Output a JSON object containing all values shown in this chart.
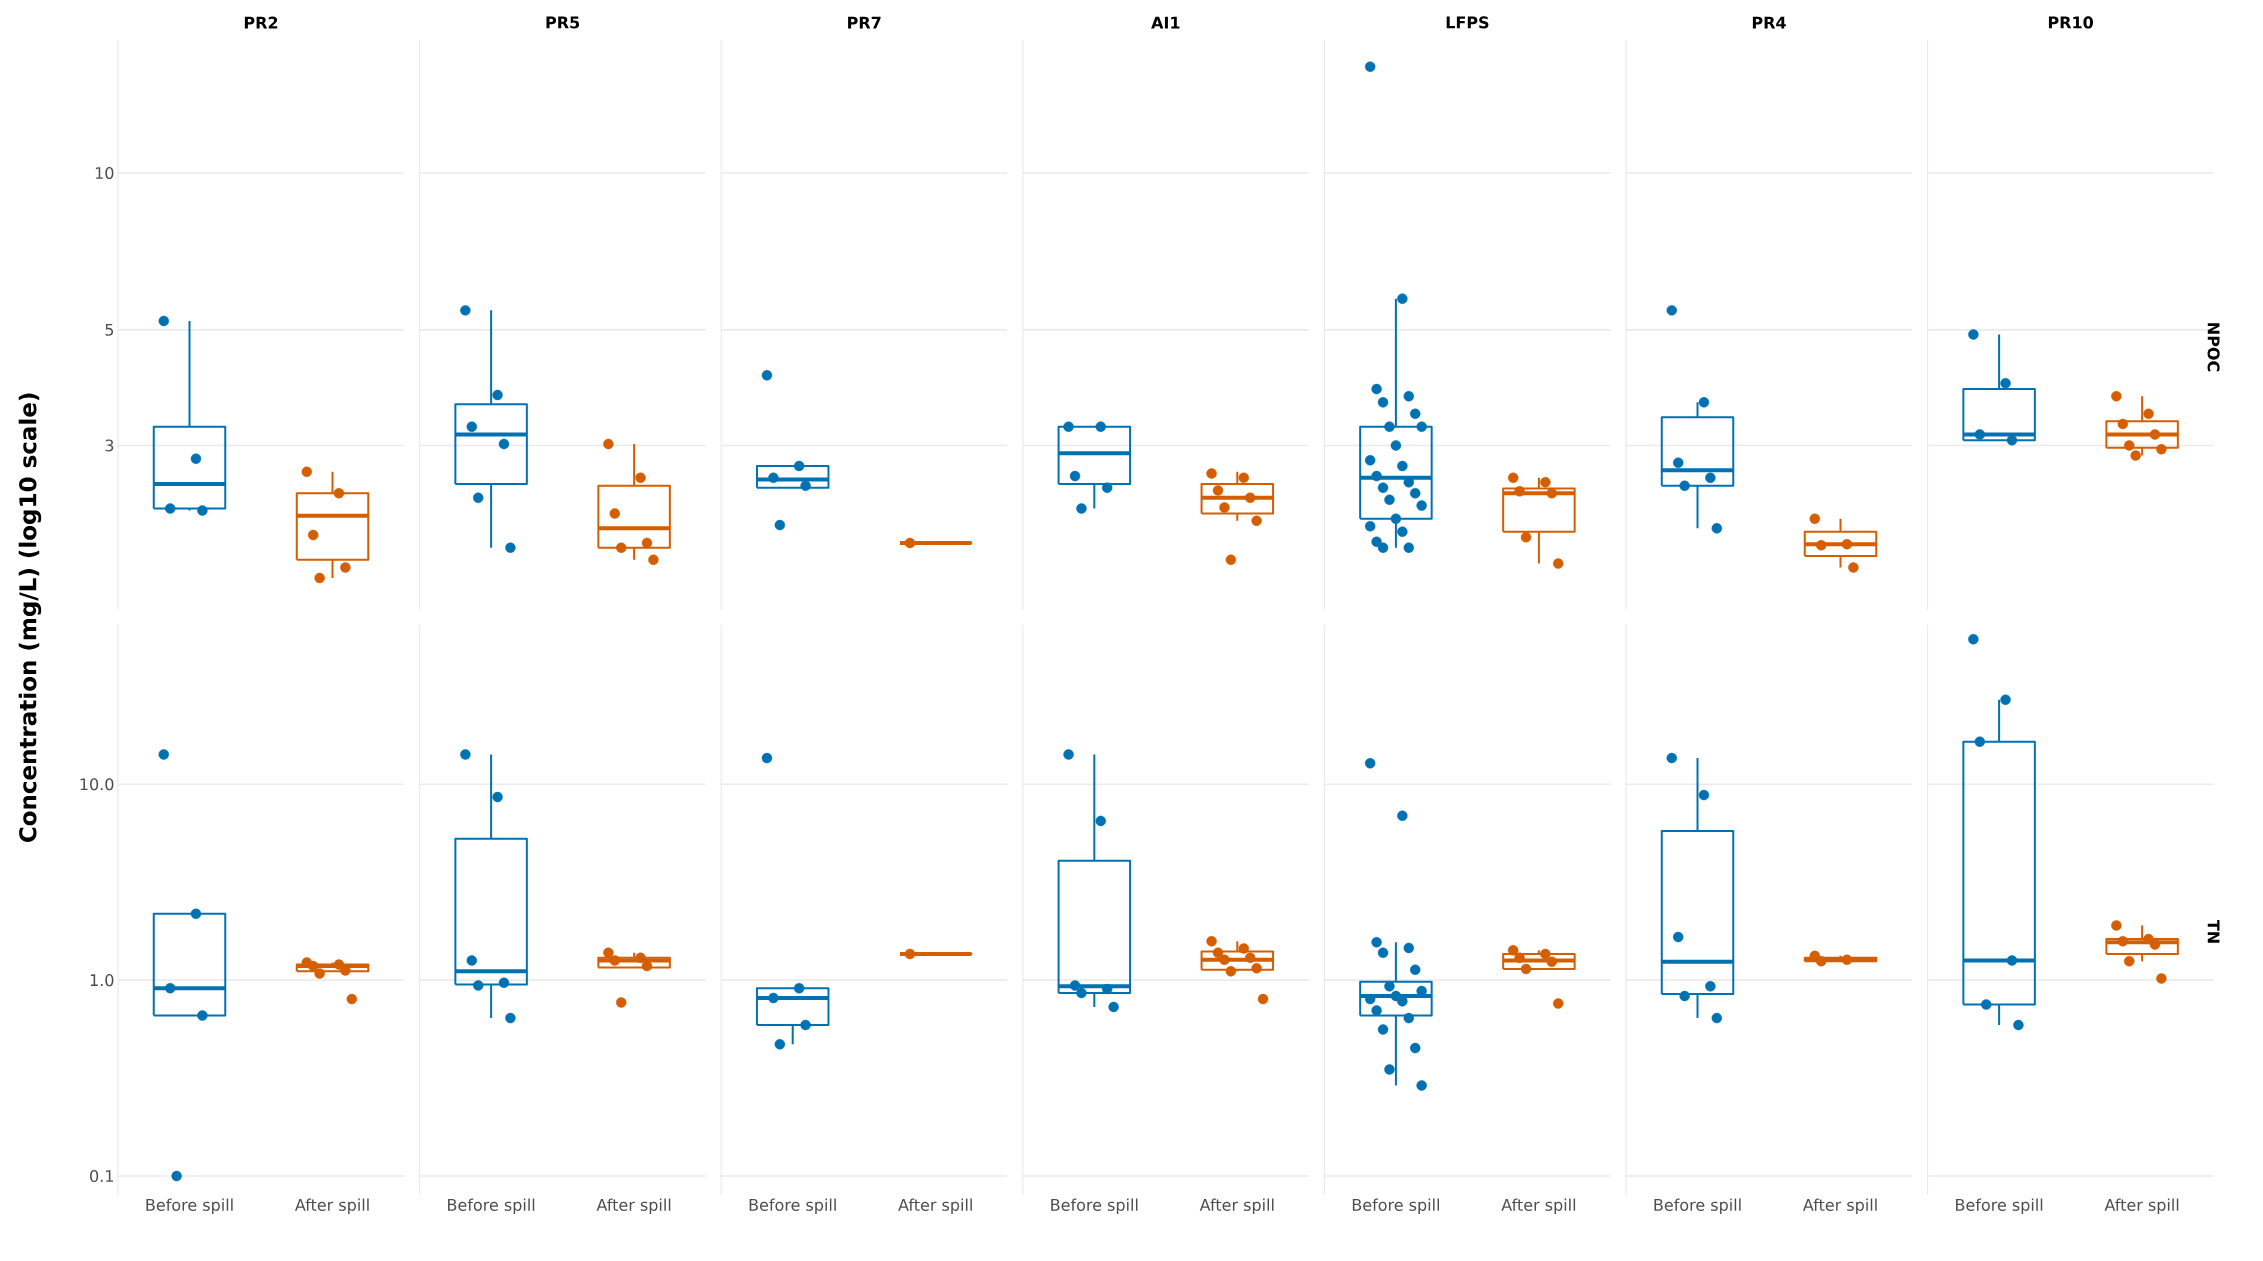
{
  "chart_data": [
    {
      "type": "box",
      "title": "PR2",
      "ylabel": "Concentration (mg/L) (log10 scale)",
      "categories": [
        "Before spill",
        "After spill"
      ],
      "log": true,
      "ylim": [
        1.45,
        18
      ],
      "yticks": [
        3,
        5,
        10
      ],
      "grid": "y",
      "tick_labels": "y",
      "series": [
        {
          "type": "box",
          "colors": [
            "#0072b2",
            "#d55e00"
          ],
          "boxes": [
            {
              "low": 2.25,
              "q1": 2.27,
              "median": 2.53,
              "q3": 3.26,
              "high": 5.2
            },
            {
              "low": 1.67,
              "q1": 1.81,
              "median": 2.2,
              "q3": 2.43,
              "high": 2.67
            }
          ]
        },
        {
          "type": "scatter",
          "marker": "circle",
          "x": [
            "Before spill",
            "Before spill",
            "Before spill",
            "Before spill",
            "After spill",
            "After spill",
            "After spill",
            "After spill",
            "After spill"
          ],
          "values": [
            5.2,
            2.83,
            2.27,
            2.25,
            2.67,
            2.43,
            2.02,
            1.75,
            1.67
          ],
          "colors": [
            "#0072b2",
            "#0072b2",
            "#0072b2",
            "#0072b2",
            "#d55e00",
            "#d55e00",
            "#d55e00",
            "#d55e00",
            "#d55e00"
          ]
        }
      ]
    },
    {
      "type": "box",
      "title": "PR5",
      "categories": [
        "Before spill",
        "After spill"
      ],
      "log": true,
      "ylim": [
        1.45,
        18
      ],
      "yticks": [
        3,
        5,
        10
      ],
      "grid": "y",
      "tick_labels": false,
      "series": [
        {
          "type": "box",
          "colors": [
            "#0072b2",
            "#d55e00"
          ],
          "boxes": [
            {
              "low": 1.91,
              "q1": 2.53,
              "median": 3.15,
              "q3": 3.6,
              "high": 5.45
            },
            {
              "low": 1.81,
              "q1": 1.91,
              "median": 2.08,
              "q3": 2.51,
              "high": 3.02
            }
          ]
        },
        {
          "type": "scatter",
          "marker": "circle",
          "x": [
            "Before spill",
            "Before spill",
            "Before spill",
            "Before spill",
            "Before spill",
            "Before spill",
            "After spill",
            "After spill",
            "After spill",
            "After spill",
            "After spill",
            "After spill"
          ],
          "values": [
            5.45,
            3.75,
            3.26,
            3.02,
            2.38,
            1.91,
            3.02,
            2.6,
            2.22,
            1.95,
            1.91,
            1.81
          ],
          "colors": [
            "#0072b2",
            "#0072b2",
            "#0072b2",
            "#0072b2",
            "#0072b2",
            "#0072b2",
            "#d55e00",
            "#d55e00",
            "#d55e00",
            "#d55e00",
            "#d55e00",
            "#d55e00"
          ]
        }
      ]
    },
    {
      "type": "box",
      "title": "PR7",
      "categories": [
        "Before spill",
        "After spill"
      ],
      "log": true,
      "ylim": [
        1.45,
        18
      ],
      "yticks": [
        3,
        5,
        10
      ],
      "grid": "y",
      "tick_labels": false,
      "series": [
        {
          "type": "box",
          "colors": [
            "#0072b2",
            "#d55e00"
          ],
          "boxes": [
            {
              "low": 2.49,
              "q1": 2.49,
              "median": 2.58,
              "q3": 2.74,
              "high": 2.74
            },
            {
              "low": 1.95,
              "q1": 1.95,
              "median": 1.95,
              "q3": 1.95,
              "high": 1.95
            }
          ]
        },
        {
          "type": "scatter",
          "marker": "circle",
          "x": [
            "Before spill",
            "Before spill",
            "Before spill",
            "Before spill",
            "Before spill",
            "After spill"
          ],
          "values": [
            4.09,
            2.74,
            2.6,
            2.51,
            2.11,
            1.95
          ],
          "colors": [
            "#0072b2",
            "#0072b2",
            "#0072b2",
            "#0072b2",
            "#0072b2",
            "#d55e00"
          ]
        }
      ]
    },
    {
      "type": "box",
      "title": "AI1",
      "categories": [
        "Before spill",
        "After spill"
      ],
      "log": true,
      "ylim": [
        1.45,
        18
      ],
      "yticks": [
        3,
        5,
        10
      ],
      "grid": "y",
      "tick_labels": false,
      "series": [
        {
          "type": "box",
          "colors": [
            "#0072b2",
            "#d55e00"
          ],
          "boxes": [
            {
              "low": 2.27,
              "q1": 2.53,
              "median": 2.9,
              "q3": 3.26,
              "high": 3.26
            },
            {
              "low": 2.15,
              "q1": 2.22,
              "median": 2.38,
              "q3": 2.53,
              "high": 2.67
            }
          ]
        },
        {
          "type": "scatter",
          "marker": "circle",
          "x": [
            "Before spill",
            "Before spill",
            "Before spill",
            "Before spill",
            "Before spill",
            "After spill",
            "After spill",
            "After spill",
            "After spill",
            "After spill",
            "After spill",
            "After spill"
          ],
          "values": [
            3.26,
            3.26,
            2.62,
            2.49,
            2.27,
            2.65,
            2.6,
            2.46,
            2.38,
            2.28,
            2.15,
            1.81
          ],
          "colors": [
            "#0072b2",
            "#0072b2",
            "#0072b2",
            "#0072b2",
            "#0072b2",
            "#d55e00",
            "#d55e00",
            "#d55e00",
            "#d55e00",
            "#d55e00",
            "#d55e00",
            "#d55e00"
          ]
        }
      ]
    },
    {
      "type": "box",
      "title": "LFPS",
      "categories": [
        "Before spill",
        "After spill"
      ],
      "log": true,
      "ylim": [
        1.45,
        18
      ],
      "yticks": [
        3,
        5,
        10
      ],
      "grid": "y",
      "tick_labels": false,
      "series": [
        {
          "type": "box",
          "colors": [
            "#0072b2",
            "#d55e00"
          ],
          "boxes": [
            {
              "low": 1.91,
              "q1": 2.17,
              "median": 2.6,
              "q3": 3.26,
              "high": 5.74
            },
            {
              "low": 1.78,
              "q1": 2.05,
              "median": 2.43,
              "q3": 2.48,
              "high": 2.6
            }
          ]
        },
        {
          "type": "scatter",
          "marker": "circle",
          "x": [
            "Before spill",
            "Before spill",
            "Before spill",
            "Before spill",
            "Before spill",
            "Before spill",
            "Before spill",
            "Before spill",
            "Before spill",
            "Before spill",
            "Before spill",
            "Before spill",
            "Before spill",
            "Before spill",
            "Before spill",
            "Before spill",
            "Before spill",
            "Before spill",
            "Before spill",
            "Before spill",
            "Before spill",
            "Before spill",
            "Before spill",
            "After spill",
            "After spill",
            "After spill",
            "After spill",
            "After spill",
            "After spill"
          ],
          "values": [
            16,
            5.74,
            3.85,
            3.73,
            3.63,
            3.45,
            3.26,
            3.26,
            3.0,
            2.81,
            2.74,
            2.62,
            2.55,
            2.49,
            2.43,
            2.36,
            2.3,
            2.17,
            2.1,
            2.05,
            1.96,
            1.91,
            1.91,
            2.6,
            2.55,
            2.45,
            2.43,
            2.0,
            1.78
          ],
          "colors": [
            "#0072b2",
            "#0072b2",
            "#0072b2",
            "#0072b2",
            "#0072b2",
            "#0072b2",
            "#0072b2",
            "#0072b2",
            "#0072b2",
            "#0072b2",
            "#0072b2",
            "#0072b2",
            "#0072b2",
            "#0072b2",
            "#0072b2",
            "#0072b2",
            "#0072b2",
            "#0072b2",
            "#0072b2",
            "#0072b2",
            "#0072b2",
            "#0072b2",
            "#0072b2",
            "#d55e00",
            "#d55e00",
            "#d55e00",
            "#d55e00",
            "#d55e00",
            "#d55e00"
          ]
        }
      ]
    },
    {
      "type": "box",
      "title": "PR4",
      "categories": [
        "Before spill",
        "After spill"
      ],
      "log": true,
      "ylim": [
        1.45,
        18
      ],
      "yticks": [
        3,
        5,
        10
      ],
      "grid": "y",
      "tick_labels": false,
      "series": [
        {
          "type": "box",
          "colors": [
            "#0072b2",
            "#d55e00"
          ],
          "boxes": [
            {
              "low": 2.08,
              "q1": 2.51,
              "median": 2.69,
              "q3": 3.4,
              "high": 3.63
            },
            {
              "low": 1.75,
              "q1": 1.84,
              "median": 1.94,
              "q3": 2.05,
              "high": 2.17
            }
          ]
        },
        {
          "type": "scatter",
          "marker": "circle",
          "x": [
            "Before spill",
            "Before spill",
            "Before spill",
            "Before spill",
            "Before spill",
            "Before spill",
            "After spill",
            "After spill",
            "After spill",
            "After spill"
          ],
          "values": [
            5.45,
            3.63,
            2.78,
            2.6,
            2.51,
            2.08,
            2.17,
            1.94,
            1.93,
            1.75
          ],
          "colors": [
            "#0072b2",
            "#0072b2",
            "#0072b2",
            "#0072b2",
            "#0072b2",
            "#0072b2",
            "#d55e00",
            "#d55e00",
            "#d55e00",
            "#d55e00"
          ]
        }
      ]
    },
    {
      "type": "box",
      "title": "PR10",
      "y2label": "NPOC",
      "categories": [
        "Before spill",
        "After spill"
      ],
      "log": true,
      "ylim": [
        1.45,
        18
      ],
      "yticks": [
        3,
        5,
        10
      ],
      "grid": "y",
      "tick_labels": false,
      "series": [
        {
          "type": "box",
          "colors": [
            "#0072b2",
            "#d55e00"
          ],
          "boxes": [
            {
              "low": 3.07,
              "q1": 3.07,
              "median": 3.15,
              "q3": 3.85,
              "high": 4.9
            },
            {
              "low": 2.87,
              "q1": 2.97,
              "median": 3.15,
              "q3": 3.34,
              "high": 3.73
            }
          ]
        },
        {
          "type": "scatter",
          "marker": "circle",
          "x": [
            "Before spill",
            "Before spill",
            "Before spill",
            "Before spill",
            "After spill",
            "After spill",
            "After spill",
            "After spill",
            "After spill",
            "After spill",
            "After spill"
          ],
          "values": [
            4.9,
            3.95,
            3.15,
            3.07,
            3.73,
            3.45,
            3.3,
            3.15,
            3.0,
            2.95,
            2.87
          ],
          "colors": [
            "#0072b2",
            "#0072b2",
            "#0072b2",
            "#0072b2",
            "#d55e00",
            "#d55e00",
            "#d55e00",
            "#d55e00",
            "#d55e00",
            "#d55e00",
            "#d55e00"
          ]
        }
      ]
    },
    {
      "type": "box",
      "categories": [
        "Before spill",
        "After spill"
      ],
      "log": true,
      "ylim": [
        0.08,
        65
      ],
      "yticks": [
        {
          "value": 0.1,
          "label": "0.1"
        },
        {
          "value": 1,
          "label": "1.0"
        },
        {
          "value": 10,
          "label": "10.0"
        }
      ],
      "grid": "y",
      "series": [
        {
          "type": "box",
          "colors": [
            "#0072b2",
            "#d55e00"
          ],
          "boxes": [
            {
              "low": 0.66,
              "q1": 0.66,
              "median": 0.91,
              "q3": 2.18,
              "high": 2.18
            },
            {
              "low": 1.11,
              "q1": 1.11,
              "median": 1.18,
              "q3": 1.2,
              "high": 1.23
            }
          ]
        },
        {
          "type": "scatter",
          "marker": "circle",
          "x": [
            "Before spill",
            "Before spill",
            "Before spill",
            "Before spill",
            "Before spill",
            "After spill",
            "After spill",
            "After spill",
            "After spill",
            "After spill",
            "After spill"
          ],
          "values": [
            14.2,
            2.18,
            0.91,
            0.66,
            0.1,
            1.23,
            1.2,
            1.18,
            1.12,
            1.08,
            0.8
          ],
          "colors": [
            "#0072b2",
            "#0072b2",
            "#0072b2",
            "#0072b2",
            "#0072b2",
            "#d55e00",
            "#d55e00",
            "#d55e00",
            "#d55e00",
            "#d55e00",
            "#d55e00"
          ]
        }
      ]
    },
    {
      "type": "box",
      "categories": [
        "Before spill",
        "After spill"
      ],
      "log": true,
      "ylim": [
        0.08,
        65
      ],
      "yticks": [
        {
          "value": 0.1,
          "label": null
        },
        {
          "value": 1,
          "label": null
        },
        {
          "value": 10,
          "label": null
        }
      ],
      "grid": "y",
      "tick_labels": "x",
      "series": [
        {
          "type": "box",
          "colors": [
            "#0072b2",
            "#d55e00"
          ],
          "boxes": [
            {
              "low": 0.64,
              "q1": 0.95,
              "median": 1.11,
              "q3": 5.27,
              "high": 14.2
            },
            {
              "low": 1.16,
              "q1": 1.16,
              "median": 1.26,
              "q3": 1.3,
              "high": 1.38
            }
          ]
        },
        {
          "type": "scatter",
          "marker": "circle",
          "x": [
            "Before spill",
            "Before spill",
            "Before spill",
            "Before spill",
            "Before spill",
            "Before spill",
            "After spill",
            "After spill",
            "After spill",
            "After spill",
            "After spill"
          ],
          "values": [
            14.2,
            8.6,
            1.26,
            0.97,
            0.94,
            0.64,
            1.38,
            1.3,
            1.26,
            1.18,
            0.77
          ],
          "colors": [
            "#0072b2",
            "#0072b2",
            "#0072b2",
            "#0072b2",
            "#0072b2",
            "#0072b2",
            "#d55e00",
            "#d55e00",
            "#d55e00",
            "#d55e00",
            "#d55e00"
          ]
        }
      ]
    },
    {
      "type": "box",
      "categories": [
        "Before spill",
        "After spill"
      ],
      "log": true,
      "ylim": [
        0.08,
        65
      ],
      "yticks": [
        {
          "value": 0.1,
          "label": null
        },
        {
          "value": 1,
          "label": null
        },
        {
          "value": 10,
          "label": null
        }
      ],
      "grid": "y",
      "tick_labels": "x",
      "series": [
        {
          "type": "box",
          "colors": [
            "#0072b2",
            "#d55e00"
          ],
          "boxes": [
            {
              "low": 0.47,
              "q1": 0.59,
              "median": 0.81,
              "q3": 0.91,
              "high": 0.91
            },
            {
              "low": 1.36,
              "q1": 1.36,
              "median": 1.36,
              "q3": 1.36,
              "high": 1.36
            }
          ]
        },
        {
          "type": "scatter",
          "marker": "circle",
          "x": [
            "Before spill",
            "Before spill",
            "Before spill",
            "Before spill",
            "Before spill",
            "After spill"
          ],
          "values": [
            13.6,
            0.91,
            0.81,
            0.59,
            0.47,
            1.36
          ],
          "colors": [
            "#0072b2",
            "#0072b2",
            "#0072b2",
            "#0072b2",
            "#0072b2",
            "#d55e00"
          ]
        }
      ]
    },
    {
      "type": "box",
      "categories": [
        "Before spill",
        "After spill"
      ],
      "log": true,
      "ylim": [
        0.08,
        65
      ],
      "yticks": [
        {
          "value": 0.1,
          "label": null
        },
        {
          "value": 1,
          "label": null
        },
        {
          "value": 10,
          "label": null
        }
      ],
      "grid": "y",
      "tick_labels": "x",
      "series": [
        {
          "type": "box",
          "colors": [
            "#0072b2",
            "#d55e00"
          ],
          "boxes": [
            {
              "low": 0.73,
              "q1": 0.86,
              "median": 0.93,
              "q3": 4.07,
              "high": 14.2
            },
            {
              "low": 1.11,
              "q1": 1.13,
              "median": 1.27,
              "q3": 1.4,
              "high": 1.58
            }
          ]
        },
        {
          "type": "scatter",
          "marker": "circle",
          "x": [
            "Before spill",
            "Before spill",
            "Before spill",
            "Before spill",
            "Before spill",
            "Before spill",
            "After spill",
            "After spill",
            "After spill",
            "After spill",
            "After spill",
            "After spill",
            "After spill",
            "After spill"
          ],
          "values": [
            14.2,
            6.5,
            0.94,
            0.9,
            0.86,
            0.73,
            1.58,
            1.45,
            1.38,
            1.3,
            1.27,
            1.15,
            1.11,
            0.8
          ],
          "colors": [
            "#0072b2",
            "#0072b2",
            "#0072b2",
            "#0072b2",
            "#0072b2",
            "#0072b2",
            "#d55e00",
            "#d55e00",
            "#d55e00",
            "#d55e00",
            "#d55e00",
            "#d55e00",
            "#d55e00",
            "#d55e00"
          ]
        }
      ]
    },
    {
      "type": "box",
      "categories": [
        "Before spill",
        "After spill"
      ],
      "log": true,
      "ylim": [
        0.08,
        65
      ],
      "yticks": [
        {
          "value": 0.1,
          "label": null
        },
        {
          "value": 1,
          "label": null
        },
        {
          "value": 10,
          "label": null
        }
      ],
      "grid": "y",
      "tick_labels": "x",
      "series": [
        {
          "type": "box",
          "colors": [
            "#0072b2",
            "#d55e00"
          ],
          "boxes": [
            {
              "low": 0.29,
              "q1": 0.66,
              "median": 0.83,
              "q3": 0.98,
              "high": 1.56
            },
            {
              "low": 1.14,
              "q1": 1.14,
              "median": 1.26,
              "q3": 1.36,
              "high": 1.42
            }
          ]
        },
        {
          "type": "scatter",
          "marker": "circle",
          "x": [
            "Before spill",
            "Before spill",
            "Before spill",
            "Before spill",
            "Before spill",
            "Before spill",
            "Before spill",
            "Before spill",
            "Before spill",
            "Before spill",
            "Before spill",
            "Before spill",
            "Before spill",
            "Before spill",
            "Before spill",
            "Before spill",
            "Before spill",
            "After spill",
            "After spill",
            "After spill",
            "After spill",
            "After spill",
            "After spill"
          ],
          "values": [
            12.8,
            6.9,
            1.56,
            1.46,
            1.38,
            1.13,
            0.93,
            0.88,
            0.83,
            0.8,
            0.78,
            0.7,
            0.64,
            0.56,
            0.45,
            0.35,
            0.29,
            1.42,
            1.36,
            1.3,
            1.24,
            1.14,
            0.76
          ],
          "colors": [
            "#0072b2",
            "#0072b2",
            "#0072b2",
            "#0072b2",
            "#0072b2",
            "#0072b2",
            "#0072b2",
            "#0072b2",
            "#0072b2",
            "#0072b2",
            "#0072b2",
            "#0072b2",
            "#0072b2",
            "#0072b2",
            "#0072b2",
            "#0072b2",
            "#0072b2",
            "#d55e00",
            "#d55e00",
            "#d55e00",
            "#d55e00",
            "#d55e00",
            "#d55e00"
          ]
        }
      ]
    },
    {
      "type": "box",
      "categories": [
        "Before spill",
        "After spill"
      ],
      "log": true,
      "ylim": [
        0.08,
        65
      ],
      "yticks": [
        {
          "value": 0.1,
          "label": null
        },
        {
          "value": 1,
          "label": null
        },
        {
          "value": 10,
          "label": null
        }
      ],
      "grid": "y",
      "tick_labels": "x",
      "series": [
        {
          "type": "box",
          "colors": [
            "#0072b2",
            "#d55e00"
          ],
          "boxes": [
            {
              "low": 0.64,
              "q1": 0.85,
              "median": 1.24,
              "q3": 5.78,
              "high": 13.6
            },
            {
              "low": 1.25,
              "q1": 1.25,
              "median": 1.27,
              "q3": 1.3,
              "high": 1.33
            }
          ]
        },
        {
          "type": "scatter",
          "marker": "circle",
          "x": [
            "Before spill",
            "Before spill",
            "Before spill",
            "Before spill",
            "Before spill",
            "Before spill",
            "After spill",
            "After spill",
            "After spill"
          ],
          "values": [
            13.6,
            8.8,
            1.66,
            0.93,
            0.83,
            0.64,
            1.33,
            1.27,
            1.25
          ],
          "colors": [
            "#0072b2",
            "#0072b2",
            "#0072b2",
            "#0072b2",
            "#0072b2",
            "#0072b2",
            "#d55e00",
            "#d55e00",
            "#d55e00"
          ]
        }
      ]
    },
    {
      "type": "box",
      "y2label": "TN",
      "categories": [
        "Before spill",
        "After spill"
      ],
      "log": true,
      "ylim": [
        0.08,
        65
      ],
      "yticks": [
        {
          "value": 0.1,
          "label": null
        },
        {
          "value": 1,
          "label": null
        },
        {
          "value": 10,
          "label": null
        }
      ],
      "grid": "y",
      "tick_labels": "x",
      "series": [
        {
          "type": "box",
          "colors": [
            "#0072b2",
            "#d55e00"
          ],
          "boxes": [
            {
              "low": 0.59,
              "q1": 0.75,
              "median": 1.26,
              "q3": 16.5,
              "high": 27
            },
            {
              "low": 1.25,
              "q1": 1.36,
              "median": 1.56,
              "q3": 1.62,
              "high": 1.9
            }
          ]
        },
        {
          "type": "scatter",
          "marker": "circle",
          "x": [
            "Before spill",
            "Before spill",
            "Before spill",
            "Before spill",
            "Before spill",
            "Before spill",
            "After spill",
            "After spill",
            "After spill",
            "After spill",
            "After spill",
            "After spill"
          ],
          "values": [
            55,
            27,
            16.5,
            1.26,
            0.75,
            0.59,
            1.9,
            1.62,
            1.58,
            1.52,
            1.25,
            1.02
          ],
          "colors": [
            "#0072b2",
            "#0072b2",
            "#0072b2",
            "#0072b2",
            "#0072b2",
            "#0072b2",
            "#d55e00",
            "#d55e00",
            "#d55e00",
            "#d55e00",
            "#d55e00",
            "#d55e00"
          ]
        }
      ]
    }
  ]
}
